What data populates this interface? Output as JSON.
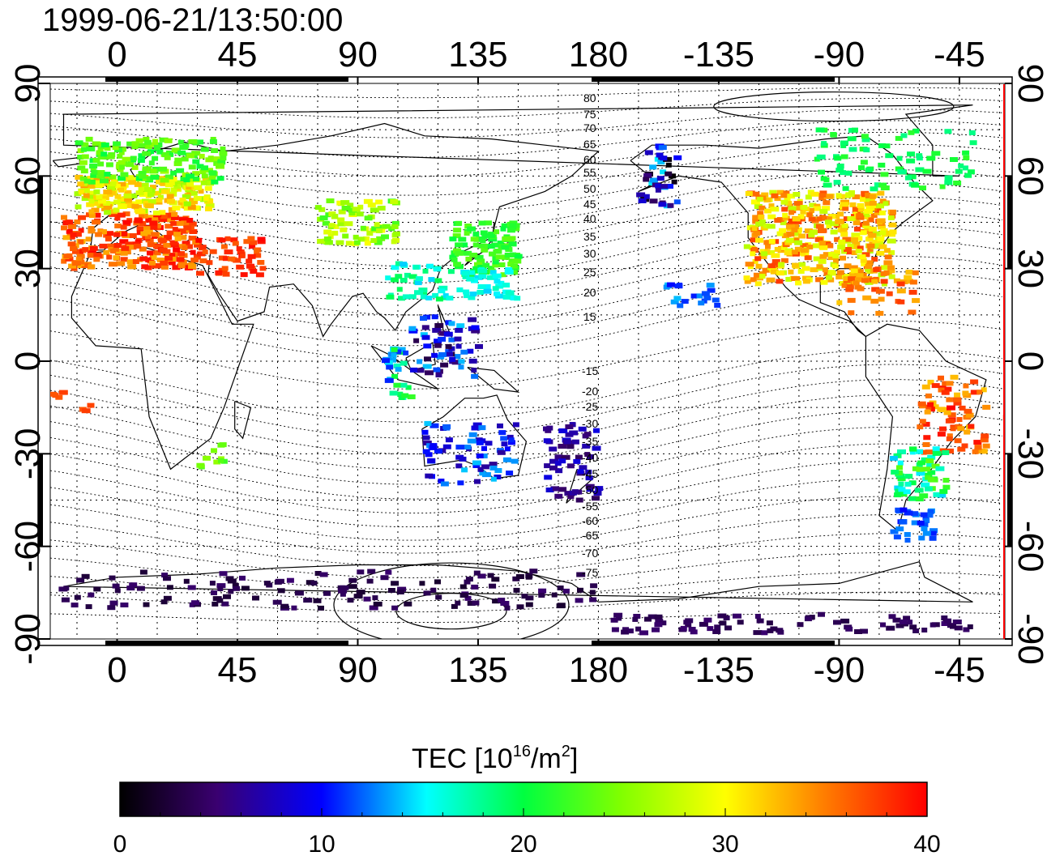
{
  "map": {
    "timestamp": "1999-06-21/13:50:00",
    "x_ticks": [
      "0",
      "45",
      "90",
      "135",
      "180",
      "-135",
      "-90",
      "-45"
    ],
    "x_tick_lons": [
      0,
      45,
      90,
      135,
      180,
      225,
      270,
      315
    ],
    "y_ticks": [
      "90",
      "60",
      "30",
      "0",
      "-30",
      "-60",
      "-90"
    ],
    "y_tick_lats": [
      90,
      60,
      30,
      0,
      -30,
      -60,
      -90
    ],
    "lon_range": [
      -25,
      332
    ],
    "lat_range": [
      -90,
      90
    ],
    "grid": true,
    "contour_labels": {
      "north": [
        "80",
        "75",
        "70",
        "65",
        "60",
        "55",
        "50",
        "45",
        "40",
        "35",
        "30",
        "25",
        "20",
        "15"
      ],
      "south": [
        "-15",
        "-20",
        "-25",
        "-30",
        "-35",
        "-40",
        "-45",
        "-50",
        "-55",
        "-60",
        "-65",
        "-70",
        "-75"
      ]
    }
  },
  "colorbar": {
    "title_main": "TEC  [10",
    "title_sup1": "16",
    "title_mid": "/m",
    "title_sup2": "2",
    "title_end": "]",
    "tick_labels": [
      "0",
      "10",
      "20",
      "30",
      "40"
    ],
    "tick_values": [
      0,
      10,
      20,
      30,
      40
    ],
    "range": [
      0,
      40
    ],
    "colors": [
      "#000000",
      "#4b0082",
      "#0000ff",
      "#00ffff",
      "#00ff00",
      "#ffff00",
      "#ff7f00",
      "#ff0000"
    ]
  }
}
